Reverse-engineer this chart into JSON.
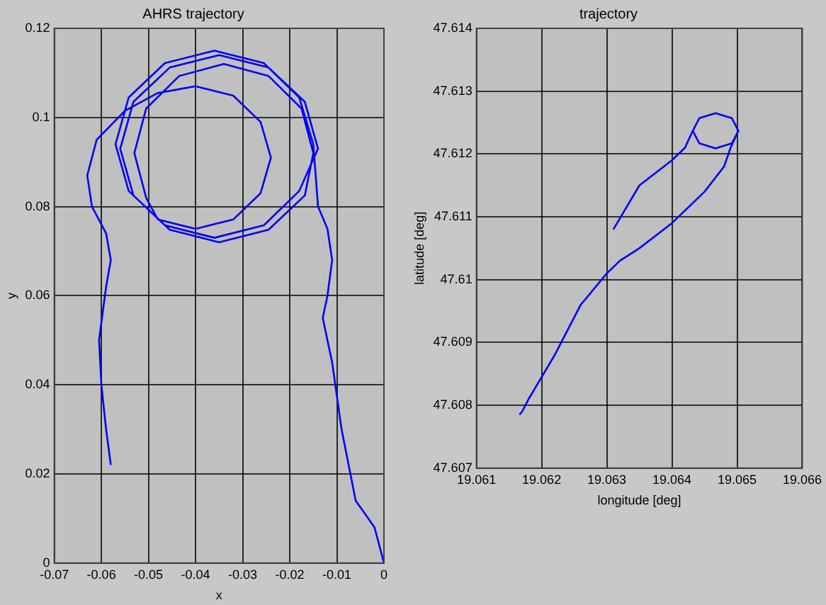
{
  "chart_data": [
    {
      "type": "line",
      "title": "AHRS trajectory",
      "xlabel": "x",
      "ylabel": "y",
      "grid": true,
      "xlim": [
        -0.07,
        0
      ],
      "xticks": [
        -0.07,
        -0.06,
        -0.05,
        -0.04,
        -0.03,
        -0.02,
        -0.01,
        0
      ],
      "ylim": [
        0,
        0.12
      ],
      "yticks": [
        0,
        0.02,
        0.04,
        0.06,
        0.08,
        0.1,
        0.12
      ],
      "series": [
        {
          "color": "#0000ff",
          "x": [
            0,
            -0.002,
            -0.006,
            -0.009,
            -0.011,
            -0.013,
            -0.012,
            -0.011,
            -0.012,
            -0.014,
            -0.015,
            -0.018,
            -0.0255,
            -0.036,
            -0.0465,
            -0.0542,
            -0.057,
            -0.0542,
            -0.0465,
            -0.036,
            -0.0255,
            -0.018,
            -0.014,
            -0.0168,
            -0.0245,
            -0.035,
            -0.0455,
            -0.0532,
            -0.056,
            -0.0532,
            -0.0455,
            -0.035,
            -0.0245,
            -0.0168,
            -0.015,
            -0.0175,
            -0.0245,
            -0.034,
            -0.0435,
            -0.0505,
            -0.053,
            -0.0505,
            -0.048,
            -0.04,
            -0.032,
            -0.0262,
            -0.024,
            -0.0262,
            -0.032,
            -0.04,
            -0.048,
            -0.055,
            -0.061,
            -0.063,
            -0.062,
            -0.059,
            -0.058,
            -0.059,
            -0.0605,
            -0.06,
            -0.059,
            -0.058
          ],
          "values": [
            0,
            0.008,
            0.014,
            0.03,
            0.045,
            0.055,
            0.06,
            0.068,
            0.075,
            0.08,
            0.094,
            0.1045,
            0.1122,
            0.115,
            0.1122,
            0.1045,
            0.094,
            0.0835,
            0.0758,
            0.073,
            0.0758,
            0.0835,
            0.093,
            0.1035,
            0.1112,
            0.114,
            0.1112,
            0.1035,
            0.093,
            0.0825,
            0.0748,
            0.072,
            0.0748,
            0.0825,
            0.092,
            0.102,
            0.1093,
            0.112,
            0.1093,
            0.102,
            0.092,
            0.082,
            0.0771,
            0.075,
            0.0771,
            0.083,
            0.091,
            0.099,
            0.1049,
            0.107,
            0.1055,
            0.1015,
            0.095,
            0.087,
            0.08,
            0.074,
            0.068,
            0.062,
            0.05,
            0.04,
            0.03,
            0.022
          ]
        }
      ]
    },
    {
      "type": "line",
      "title": "trajectory",
      "xlabel": "longitude [deg]",
      "ylabel": "latitude [deg]",
      "grid": true,
      "xlim": [
        19.061,
        19.066
      ],
      "xticks": [
        19.061,
        19.062,
        19.063,
        19.064,
        19.065,
        19.066
      ],
      "ylim": [
        47.607,
        47.614
      ],
      "yticks": [
        47.607,
        47.608,
        47.609,
        47.61,
        47.611,
        47.612,
        47.613,
        47.614
      ],
      "series": [
        {
          "color": "#0000ff",
          "x": [
            19.0631,
            19.0635,
            19.064,
            19.0642,
            19.06432,
            19.06442,
            19.06467,
            19.06492,
            19.06502,
            19.06492,
            19.06467,
            19.06442,
            19.06432,
            19.06442,
            19.06467,
            19.06492,
            19.06502,
            19.0649,
            19.0648,
            19.0645,
            19.064,
            19.0635,
            19.0632,
            19.063,
            19.0626,
            19.0622,
            19.0618,
            19.0617,
            19.06166
          ],
          "values": [
            47.6108,
            47.6115,
            47.6119,
            47.6121,
            47.61237,
            47.61257,
            47.61265,
            47.61257,
            47.61237,
            47.61217,
            47.61209,
            47.61217,
            47.61237,
            47.61257,
            47.61265,
            47.61257,
            47.61237,
            47.6121,
            47.6118,
            47.6114,
            47.6109,
            47.6105,
            47.6103,
            47.6101,
            47.6096,
            47.6088,
            47.6081,
            47.6079,
            47.60785
          ]
        }
      ]
    }
  ]
}
